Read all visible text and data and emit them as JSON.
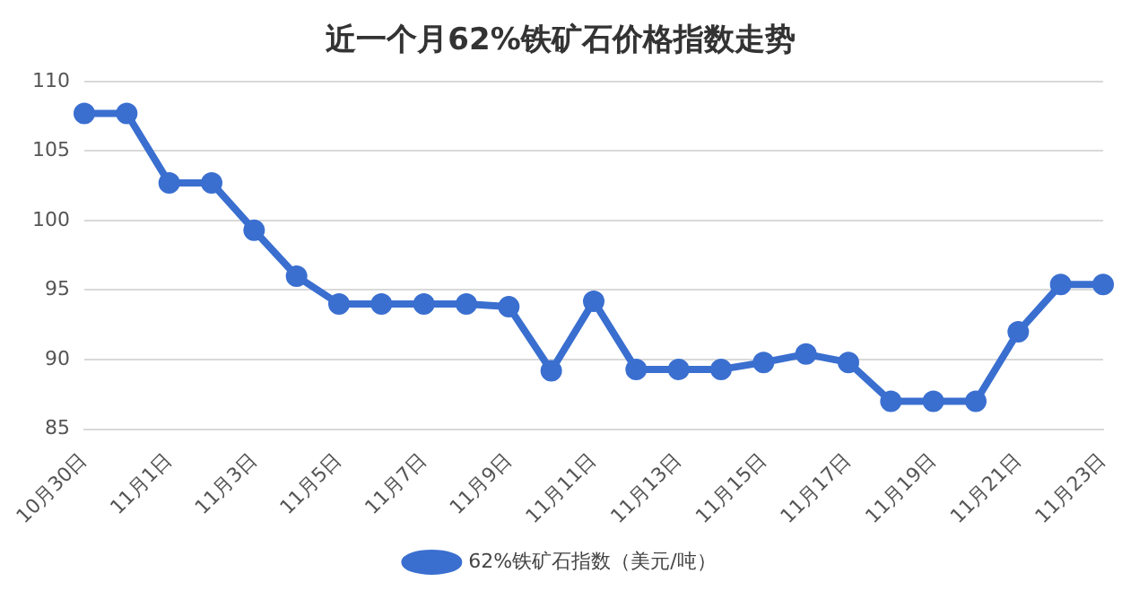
{
  "chart_data": {
    "type": "line",
    "title": "近一个月62%铁矿石价格指数走势",
    "categories": [
      "10月30日",
      null,
      "11月1日",
      null,
      "11月3日",
      null,
      "11月5日",
      null,
      "11月7日",
      null,
      "11月9日",
      null,
      "11月11日",
      null,
      "11月13日",
      null,
      "11月15日",
      null,
      "11月17日",
      null,
      "11月19日",
      null,
      "11月21日",
      null,
      "11月23日"
    ],
    "series": [
      {
        "name": "62%铁矿石指数（美元/吨）",
        "color": "#3a6fd0",
        "values": [
          107.7,
          107.7,
          102.7,
          102.7,
          99.3,
          96.0,
          94.0,
          94.0,
          94.0,
          94.0,
          93.8,
          89.2,
          94.2,
          89.3,
          89.3,
          89.3,
          89.8,
          90.4,
          89.8,
          87.0,
          87.0,
          87.0,
          92.0,
          95.4,
          95.4
        ]
      }
    ],
    "ylim": [
      85,
      110
    ],
    "yticks": [
      85,
      90,
      95,
      100,
      105,
      110
    ],
    "grid": "y",
    "legend": "bottom",
    "marker": "circle",
    "line_style": "solid"
  }
}
